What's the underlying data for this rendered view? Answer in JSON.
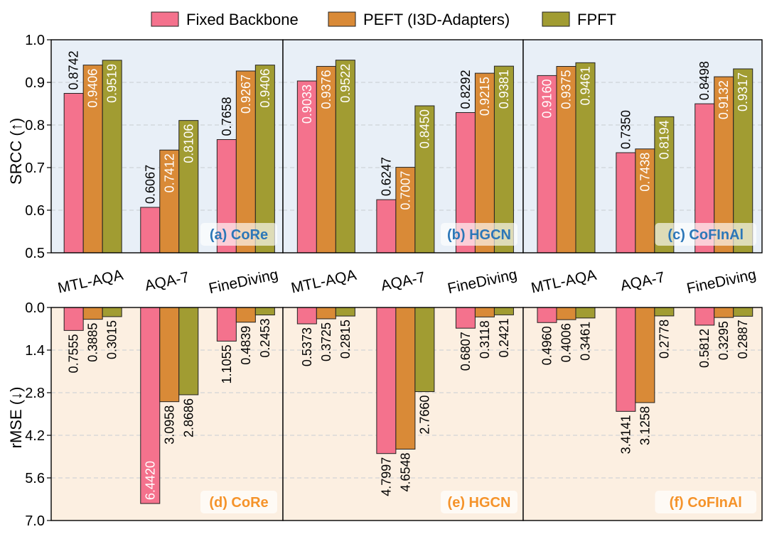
{
  "legend": [
    {
      "label": "Fixed Backbone",
      "color": "#f4728d"
    },
    {
      "label": "PEFT (I3D-Adapters)",
      "color": "#d98a37"
    },
    {
      "label": "FPFT",
      "color": "#a19c32"
    }
  ],
  "panel_colors": {
    "top_bg": "#e8eff7",
    "bottom_bg": "#fcefe1",
    "top_label_color": "#2c77b8",
    "bottom_label_color": "#f5932a"
  },
  "axes": {
    "top_ylabel": "SRCC (↑)",
    "bottom_ylabel": "rMSE (↓)",
    "top_ticks": [
      "0.5",
      "0.6",
      "0.7",
      "0.8",
      "0.9",
      "1.0"
    ],
    "bottom_ticks": [
      "0.0",
      "1.4",
      "2.8",
      "4.2",
      "5.6",
      "7.0"
    ]
  },
  "chart_data": [
    {
      "type": "bar",
      "panel_label": "(a) CoRe",
      "categories": [
        "MTL-AQA",
        "AQA-7",
        "FineDiving"
      ],
      "ylim": [
        0.5,
        1.0
      ],
      "series": [
        {
          "name": "Fixed Backbone",
          "values": [
            0.8742,
            0.6067,
            0.7658
          ],
          "labels": [
            "0.8742",
            "0.6067",
            "0.7658"
          ]
        },
        {
          "name": "PEFT (I3D-Adapters)",
          "values": [
            0.9406,
            0.7412,
            0.9267
          ],
          "labels": [
            "0.9406",
            "0.7412",
            "0.9267"
          ]
        },
        {
          "name": "FPFT",
          "values": [
            0.9519,
            0.8106,
            0.9406
          ],
          "labels": [
            "0.9519",
            "0.8106",
            "0.9406"
          ]
        }
      ]
    },
    {
      "type": "bar",
      "panel_label": "(b) HGCN",
      "categories": [
        "MTL-AQA",
        "AQA-7",
        "FineDiving"
      ],
      "ylim": [
        0.5,
        1.0
      ],
      "series": [
        {
          "name": "Fixed Backbone",
          "values": [
            0.9033,
            0.6247,
            0.8292
          ],
          "labels": [
            "0.9033",
            "0.6247",
            "0.8292"
          ]
        },
        {
          "name": "PEFT (I3D-Adapters)",
          "values": [
            0.9376,
            0.7007,
            0.9215
          ],
          "labels": [
            "0.9376",
            "0.7007",
            "0.9215"
          ]
        },
        {
          "name": "FPFT",
          "values": [
            0.9522,
            0.845,
            0.9381
          ],
          "labels": [
            "0.9522",
            "0.8450",
            "0.9381"
          ]
        }
      ]
    },
    {
      "type": "bar",
      "panel_label": "(c) CoFInAl",
      "categories": [
        "MTL-AQA",
        "AQA-7",
        "FineDiving"
      ],
      "ylim": [
        0.5,
        1.0
      ],
      "series": [
        {
          "name": "Fixed Backbone",
          "values": [
            0.916,
            0.735,
            0.8498
          ],
          "labels": [
            "0.9160",
            "0.7350",
            "0.8498"
          ]
        },
        {
          "name": "PEFT (I3D-Adapters)",
          "values": [
            0.9375,
            0.7438,
            0.9132
          ],
          "labels": [
            "0.9375",
            "0.7438",
            "0.9132"
          ]
        },
        {
          "name": "FPFT",
          "values": [
            0.9461,
            0.8194,
            0.9317
          ],
          "labels": [
            "0.9461",
            "0.8194",
            "0.9317"
          ]
        }
      ]
    },
    {
      "type": "bar",
      "panel_label": "(d) CoRe",
      "categories": [
        "MTL-AQA",
        "AQA-7",
        "FineDiving"
      ],
      "ylim": [
        0.0,
        7.0
      ],
      "inverted": true,
      "series": [
        {
          "name": "Fixed Backbone",
          "values": [
            0.7555,
            6.442,
            1.1055
          ],
          "labels": [
            "0.7555",
            "6.4420",
            "1.1055"
          ]
        },
        {
          "name": "PEFT (I3D-Adapters)",
          "values": [
            0.3885,
            3.0958,
            0.4839
          ],
          "labels": [
            "0.3885",
            "3.0958",
            "0.4839"
          ]
        },
        {
          "name": "FPFT",
          "values": [
            0.3015,
            2.8686,
            0.2453
          ],
          "labels": [
            "0.3015",
            "2.8686",
            "0.2453"
          ]
        }
      ]
    },
    {
      "type": "bar",
      "panel_label": "(e) HGCN",
      "categories": [
        "MTL-AQA",
        "AQA-7",
        "FineDiving"
      ],
      "ylim": [
        0.0,
        7.0
      ],
      "inverted": true,
      "series": [
        {
          "name": "Fixed Backbone",
          "values": [
            0.5373,
            4.7997,
            0.6807
          ],
          "labels": [
            "0.5373",
            "4.7997",
            "0.6807"
          ]
        },
        {
          "name": "PEFT (I3D-Adapters)",
          "values": [
            0.3725,
            4.6548,
            0.3118
          ],
          "labels": [
            "0.3725",
            "4.6548",
            "0.3118"
          ]
        },
        {
          "name": "FPFT",
          "values": [
            0.2815,
            2.766,
            0.2421
          ],
          "labels": [
            "0.2815",
            "2.7660",
            "0.2421"
          ]
        }
      ]
    },
    {
      "type": "bar",
      "panel_label": "(f) CoFInAl",
      "categories": [
        "MTL-AQA",
        "AQA-7",
        "FineDiving"
      ],
      "ylim": [
        0.0,
        7.0
      ],
      "inverted": true,
      "series": [
        {
          "name": "Fixed Backbone",
          "values": [
            0.496,
            3.4141,
            0.5812
          ],
          "labels": [
            "0.4960",
            "3.4141",
            "0.5812"
          ]
        },
        {
          "name": "PEFT (I3D-Adapters)",
          "values": [
            0.4006,
            3.1258,
            0.3295
          ],
          "labels": [
            "0.4006",
            "3.1258",
            "0.3295"
          ]
        },
        {
          "name": "FPFT",
          "values": [
            0.3461,
            0.2778,
            0.2887
          ],
          "labels": [
            "0.3461",
            "0.2778",
            "0.2887"
          ]
        }
      ]
    }
  ]
}
